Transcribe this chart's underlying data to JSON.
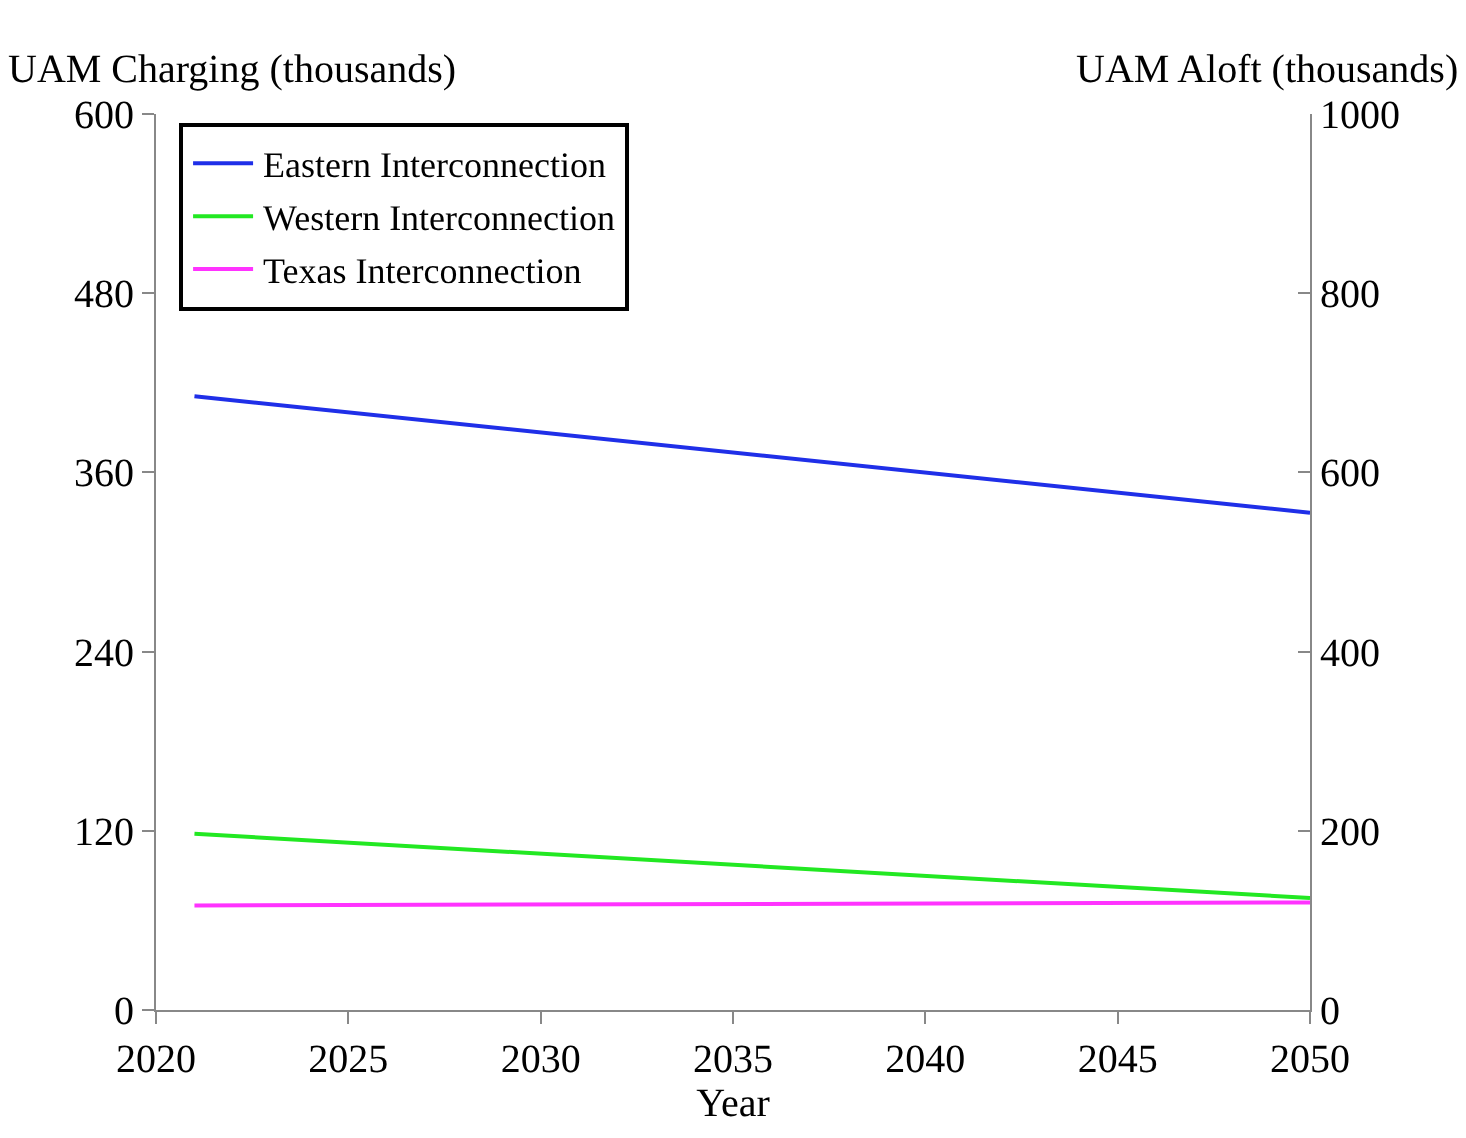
{
  "chart_data": {
    "type": "line",
    "xlabel": "Year",
    "ylabel": "UAM Charging (thousands)",
    "y2label": "UAM Aloft (thousands)",
    "x": [
      2021,
      2050
    ],
    "series": [
      {
        "name": "Eastern Interconnection",
        "color": "#1f2fe8",
        "values": [
          411,
          333
        ]
      },
      {
        "name": "Western Interconnection",
        "color": "#22e822",
        "values": [
          118,
          75
        ]
      },
      {
        "name": "Texas Interconnection",
        "color": "#ff33ff",
        "values": [
          70,
          72
        ]
      }
    ],
    "xlim": [
      2020,
      2050
    ],
    "xticks": [
      2020,
      2025,
      2030,
      2035,
      2040,
      2045,
      2050
    ],
    "ylim": [
      0,
      600
    ],
    "yticks": [
      0,
      120,
      240,
      360,
      480,
      600
    ],
    "y2lim": [
      0,
      1000
    ],
    "y2ticks": [
      0,
      200,
      400,
      600,
      800,
      1000
    ],
    "grid": false,
    "legend": "top left",
    "marker": "none",
    "line_style": "solid"
  }
}
